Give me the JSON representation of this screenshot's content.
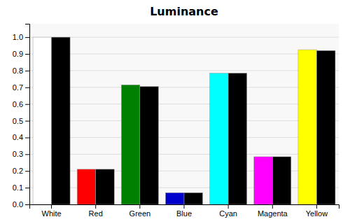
{
  "chart_data": {
    "type": "bar",
    "title": "Luminance",
    "categories": [
      "White",
      "Red",
      "Green",
      "Blue",
      "Cyan",
      "Magenta",
      "Yellow"
    ],
    "series": [
      {
        "colors": [
          "#ffffff",
          "#ff0000",
          "#008000",
          "#0000cc",
          "#00ffff",
          "#ff00ff",
          "#ffff00"
        ],
        "values": [
          1.0,
          0.21,
          0.715,
          0.07,
          0.785,
          0.285,
          0.925
        ]
      },
      {
        "color": "#000000",
        "values": [
          1.0,
          0.21,
          0.705,
          0.07,
          0.785,
          0.285,
          0.92
        ]
      }
    ],
    "ylim": [
      0.0,
      1.08
    ],
    "yticks": [
      {
        "value": 0.0,
        "label": "0.0"
      },
      0.1,
      0.2,
      0.3,
      0.4,
      0.5,
      0.6,
      0.7,
      0.8,
      0.9,
      {
        "value": 1.0,
        "label": "1.0"
      }
    ],
    "grid": true
  }
}
